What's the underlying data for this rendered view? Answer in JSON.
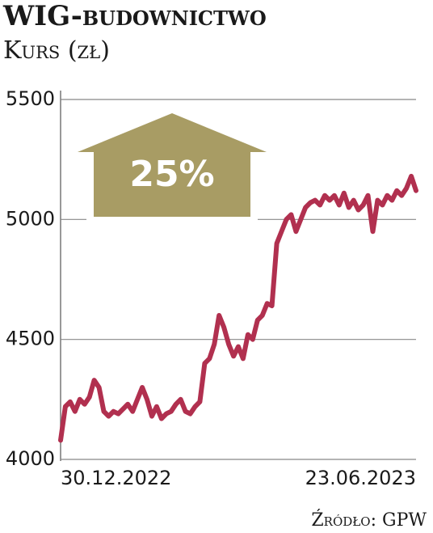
{
  "chart_data": {
    "type": "line",
    "title": "WIG-budownictwo",
    "subtitle": "Kurs (zł)",
    "annotation": "25%",
    "source": "Źródło: GPW",
    "categories": [
      "30.12.2022",
      null,
      null,
      null,
      null,
      null,
      null,
      null,
      null,
      null,
      null,
      null,
      null,
      null,
      null,
      null,
      null,
      null,
      null,
      null,
      null,
      null,
      null,
      null,
      null,
      null,
      null,
      null,
      null,
      null,
      null,
      null,
      null,
      null,
      null,
      null,
      null,
      null,
      null,
      null,
      null,
      null,
      null,
      null,
      null,
      null,
      null,
      null,
      null,
      null,
      null,
      null,
      null,
      null,
      null,
      null,
      null,
      null,
      null,
      null,
      null,
      null,
      null,
      null,
      null,
      null,
      null,
      null,
      null,
      null,
      null,
      null,
      null,
      null,
      "23.06.2023"
    ],
    "color": "#b1304f",
    "values": [
      4080,
      4220,
      4240,
      4200,
      4250,
      4230,
      4260,
      4330,
      4300,
      4200,
      4180,
      4200,
      4190,
      4210,
      4230,
      4200,
      4250,
      4300,
      4250,
      4180,
      4220,
      4170,
      4190,
      4200,
      4230,
      4250,
      4200,
      4190,
      4220,
      4240,
      4400,
      4420,
      4480,
      4600,
      4550,
      4480,
      4430,
      4470,
      4420,
      4520,
      4500,
      4580,
      4600,
      4650,
      4640,
      4900,
      4950,
      5000,
      5020,
      4950,
      5000,
      5050,
      5070,
      5080,
      5060,
      5100,
      5080,
      5100,
      5060,
      5110,
      5050,
      5080,
      5040,
      5060,
      5100,
      4950,
      5080,
      5060,
      5100,
      5080,
      5120,
      5100,
      5130,
      5180,
      5120
    ],
    "ylim": [
      4000,
      5500
    ],
    "yticks": [
      4000,
      4500,
      5000,
      5500
    ],
    "grid": true
  }
}
